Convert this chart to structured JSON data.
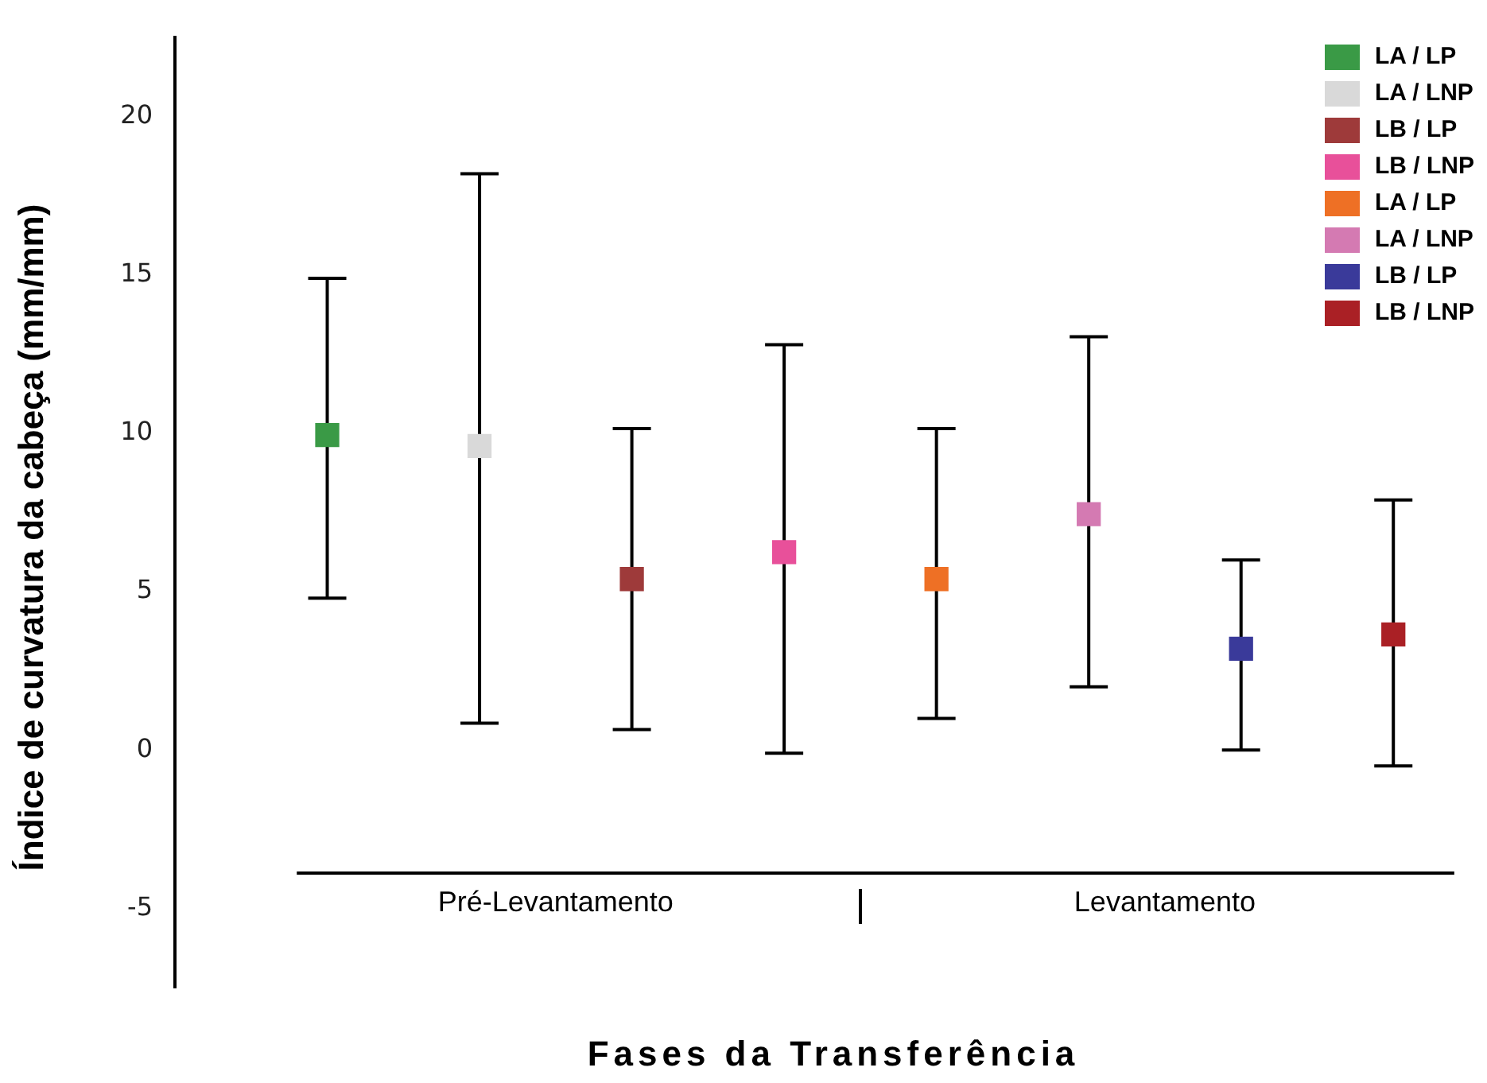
{
  "chart_data": {
    "type": "scatter",
    "xlabel": "Fases da Transferência",
    "ylabel": "Índice de curvatura da cabeça (mm/mm)",
    "categories": [
      "Pré-Levantamento",
      "Levantamento"
    ],
    "ylim": [
      -7.5,
      22.5
    ],
    "yticks": [
      -5,
      0,
      5,
      10,
      15,
      20
    ],
    "grid": false,
    "legend": "top right",
    "marker": "square",
    "series": [
      {
        "name": "LA / LP",
        "colors": [
          "#3a9a46",
          "#ee7025"
        ],
        "values": [
          9.95,
          5.4
        ],
        "errors": [
          [
            4.8,
            14.9
          ],
          [
            1.0,
            10.15
          ]
        ]
      },
      {
        "name": "LA / LNP",
        "colors": [
          "#d9d9d9",
          "#d47ab2"
        ],
        "values": [
          9.6,
          7.45
        ],
        "errors": [
          [
            0.85,
            18.2
          ],
          [
            2.0,
            13.05
          ]
        ]
      },
      {
        "name": "LB / LP",
        "colors": [
          "#9e3a3a",
          "#3a3a9a"
        ],
        "values": [
          5.4,
          3.2
        ],
        "errors": [
          [
            0.65,
            10.15
          ],
          [
            0,
            6.0
          ]
        ]
      },
      {
        "name": "LB / LNP",
        "colors": [
          "#e8509a",
          "#aa2025"
        ],
        "values": [
          6.25,
          3.65
        ],
        "errors": [
          [
            -0.1,
            12.8
          ],
          [
            -0.5,
            7.9
          ]
        ]
      }
    ]
  }
}
